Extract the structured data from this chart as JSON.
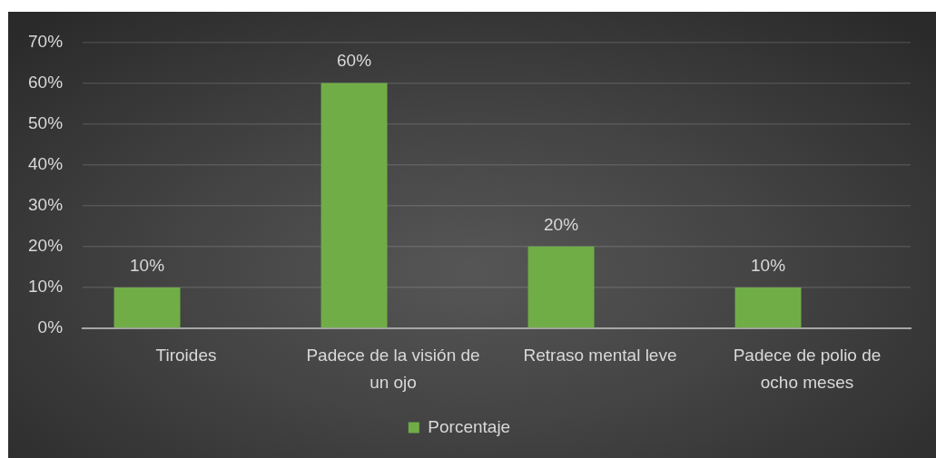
{
  "chart_data": {
    "type": "bar",
    "categories": [
      "Tiroides",
      "Padece de la visión de un ojo",
      "Retraso mental leve",
      "Padece de polio de ocho meses"
    ],
    "series": [
      {
        "name": "Porcentaje",
        "color": "#70ad47",
        "values": [
          10,
          60,
          20,
          10
        ],
        "value_labels": [
          "10%",
          "60%",
          "20%",
          "10%"
        ]
      }
    ],
    "ylim": [
      0,
      70
    ],
    "yticks": [
      {
        "value": 0,
        "label": "0%"
      },
      {
        "value": 10,
        "label": "10%"
      },
      {
        "value": 20,
        "label": "20%"
      },
      {
        "value": 30,
        "label": "30%"
      },
      {
        "value": 40,
        "label": "40%"
      },
      {
        "value": 50,
        "label": "50%"
      },
      {
        "value": 60,
        "label": "60%"
      },
      {
        "value": 70,
        "label": "70%"
      }
    ],
    "grid": "y",
    "legend": "bottom"
  }
}
